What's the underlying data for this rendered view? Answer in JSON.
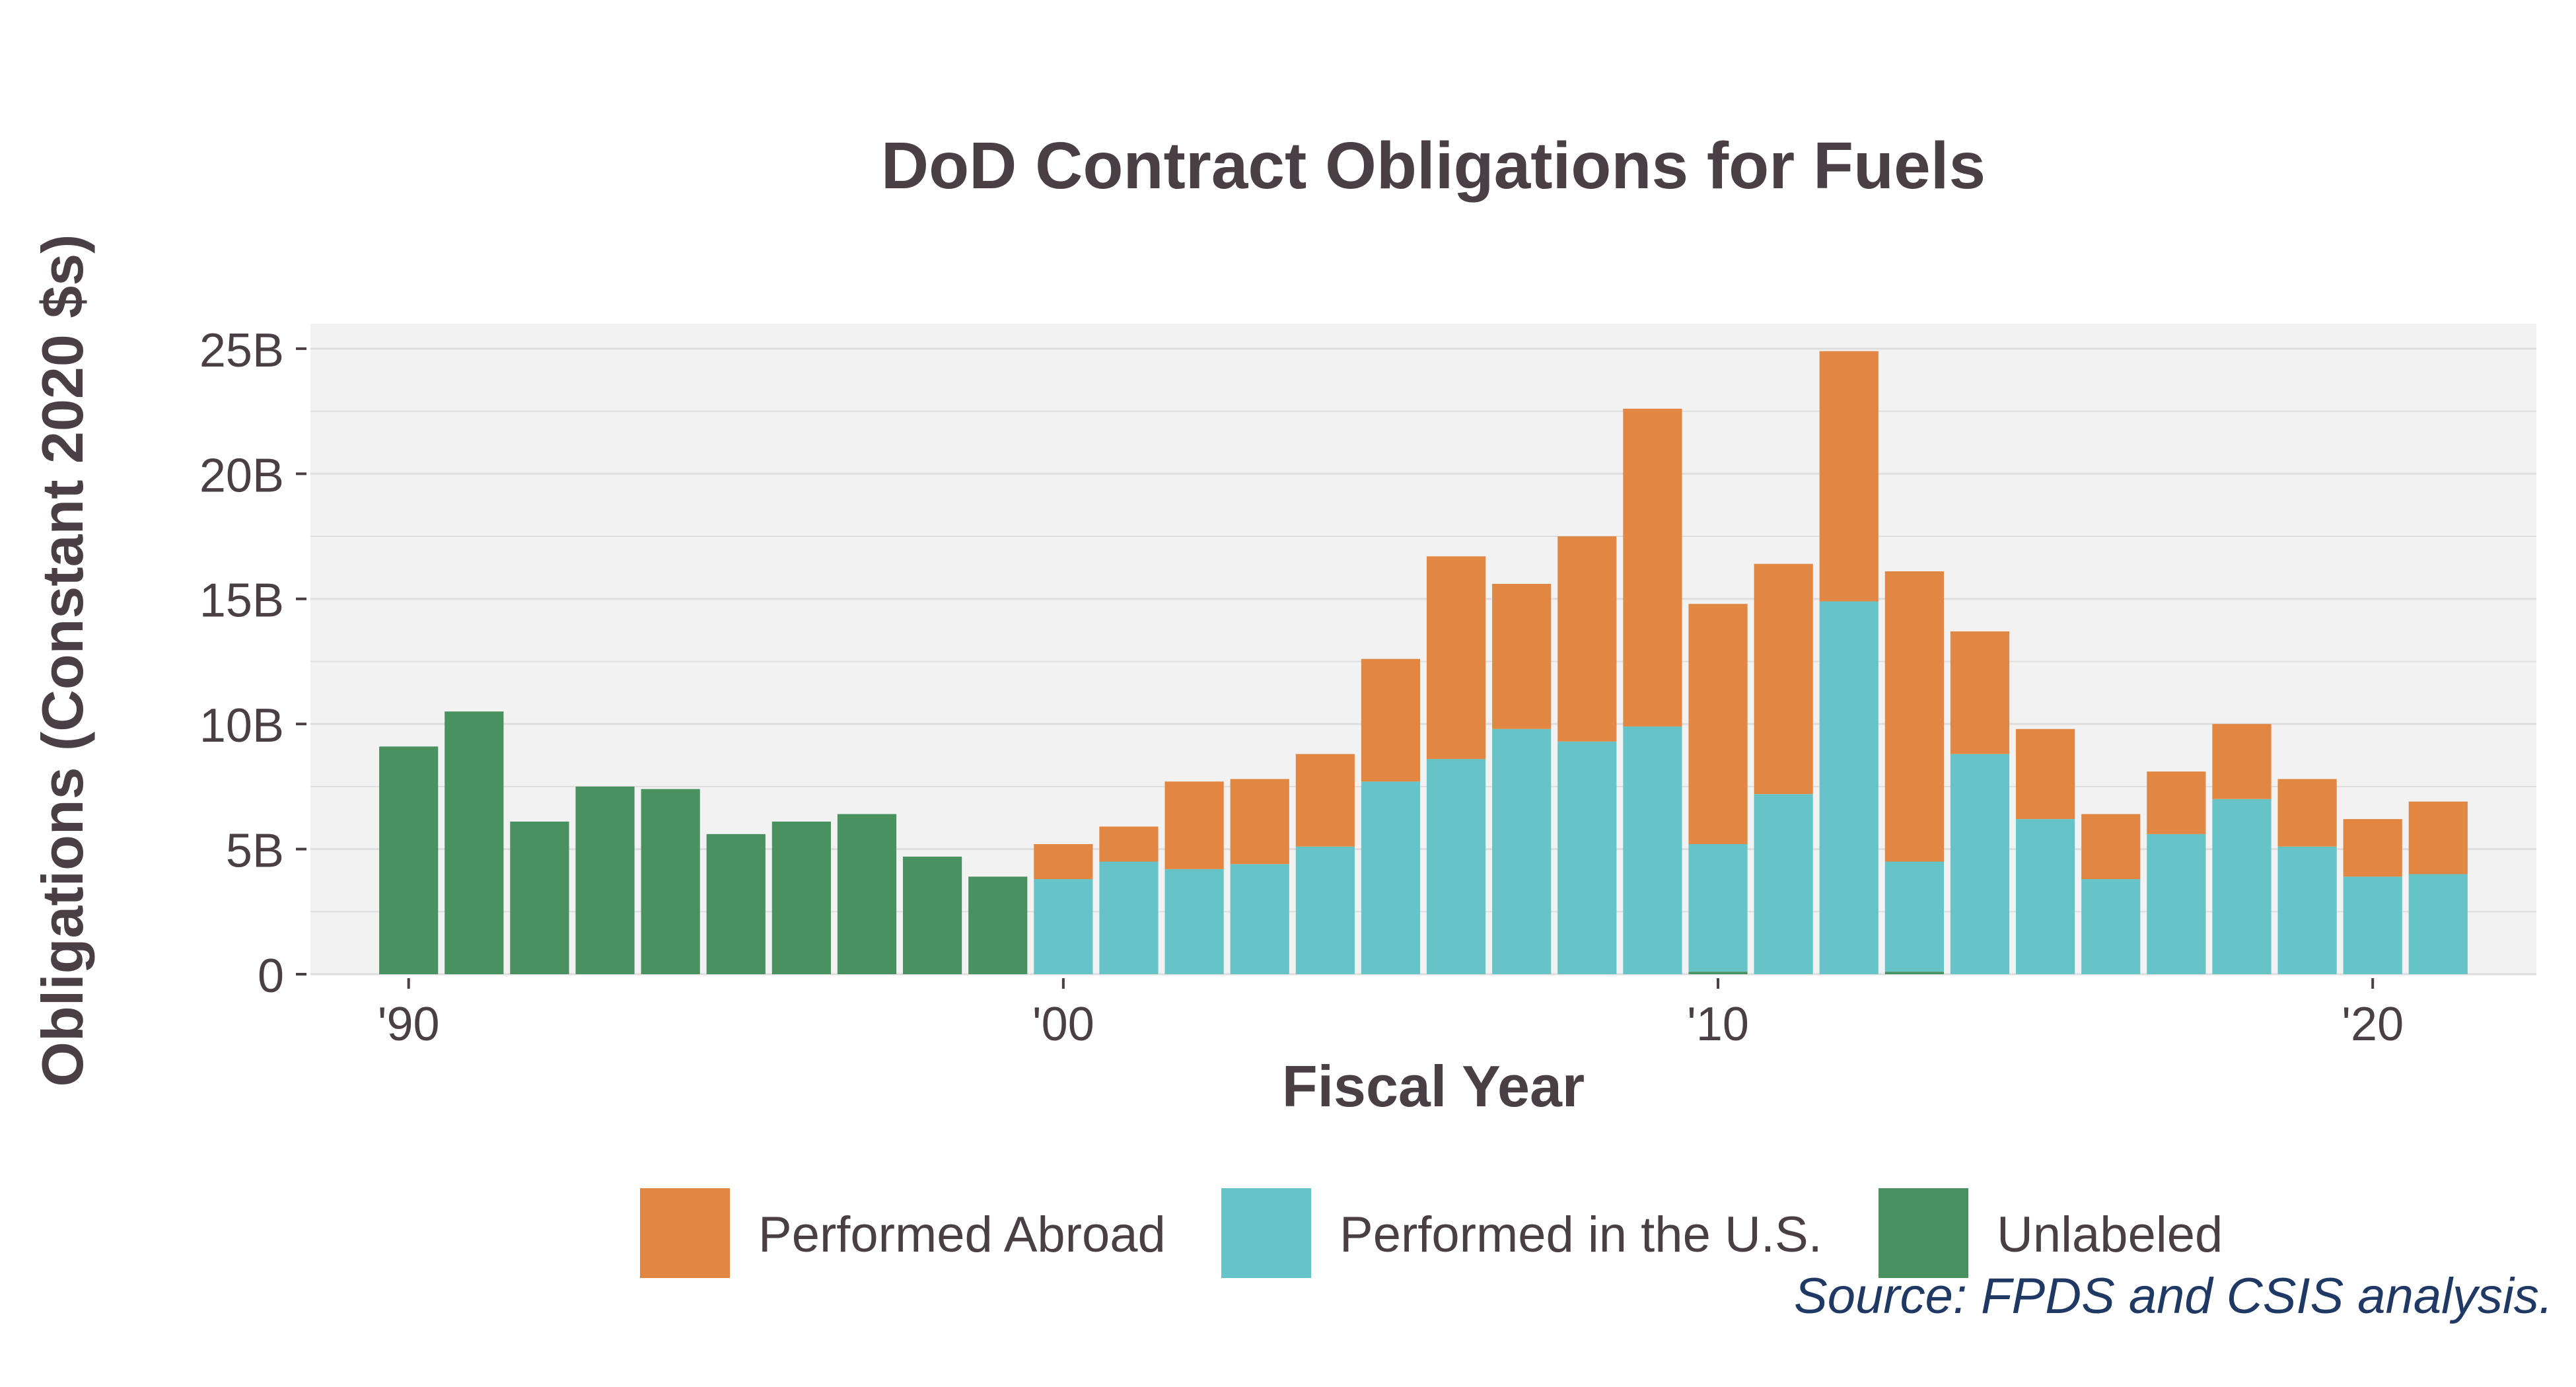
{
  "chart_data": {
    "type": "bar",
    "stacked": true,
    "title": "DoD Contract Obligations for Fuels",
    "xlabel": "Fiscal Year",
    "ylabel": "Obligations (Constant 2020 $s)",
    "source": "Source: FPDS and CSIS analysis.",
    "x": [
      1990,
      1991,
      1992,
      1993,
      1994,
      1995,
      1996,
      1997,
      1998,
      1999,
      2000,
      2001,
      2002,
      2003,
      2004,
      2005,
      2006,
      2007,
      2008,
      2009,
      2010,
      2011,
      2012,
      2013,
      2014,
      2015,
      2016,
      2017,
      2018,
      2019,
      2020,
      2021
    ],
    "xlim": [
      1988.5,
      2022.5
    ],
    "ylim": [
      0,
      26
    ],
    "y_unit": "billions",
    "x_ticks": [
      {
        "value": 1990,
        "label": "'90"
      },
      {
        "value": 2000,
        "label": "'00"
      },
      {
        "value": 2010,
        "label": "'10"
      },
      {
        "value": 2020,
        "label": "'20"
      }
    ],
    "y_ticks": [
      {
        "value": 0,
        "label": "0"
      },
      {
        "value": 5,
        "label": "5B"
      },
      {
        "value": 10,
        "label": "10B"
      },
      {
        "value": 15,
        "label": "15B"
      },
      {
        "value": 20,
        "label": "20B"
      },
      {
        "value": 25,
        "label": "25B"
      }
    ],
    "grid": true,
    "legend_position": "bottom",
    "series": [
      {
        "name": "Unlabeled",
        "color": "#4a9160",
        "values": [
          9.1,
          10.5,
          6.1,
          7.5,
          7.4,
          5.6,
          6.1,
          6.4,
          4.7,
          3.9,
          0,
          0,
          0,
          0,
          0,
          0,
          0,
          0,
          0,
          0,
          0.1,
          0,
          0,
          0.1,
          0,
          0,
          0,
          0,
          0,
          0,
          0,
          0
        ]
      },
      {
        "name": "Performed in the U.S.",
        "color": "#66c4c8",
        "values": [
          0,
          0,
          0,
          0,
          0,
          0,
          0,
          0,
          0,
          0,
          3.8,
          4.5,
          4.2,
          4.4,
          5.1,
          7.7,
          8.6,
          9.8,
          9.3,
          9.9,
          5.1,
          7.2,
          14.9,
          4.4,
          8.8,
          6.2,
          3.8,
          5.6,
          7.0,
          5.1,
          3.9,
          4.0
        ]
      },
      {
        "name": "Performed Abroad",
        "color": "#e28743",
        "values": [
          0,
          0,
          0,
          0,
          0,
          0,
          0,
          0,
          0,
          0,
          1.4,
          1.4,
          3.5,
          3.4,
          3.7,
          4.9,
          8.1,
          5.8,
          8.2,
          12.7,
          9.6,
          9.2,
          10.0,
          11.6,
          4.9,
          3.6,
          2.6,
          2.5,
          3.0,
          2.7,
          2.3,
          2.9
        ]
      }
    ],
    "legend": [
      {
        "name": "Performed Abroad",
        "color": "#e28743"
      },
      {
        "name": "Performed in the U.S.",
        "color": "#66c4c8"
      },
      {
        "name": "Unlabeled",
        "color": "#4a9160"
      }
    ],
    "panel_background": "#f2f2f2",
    "gridline_color": "#dedede",
    "text_color": "#4a3f44",
    "source_color": "#1f3864"
  }
}
